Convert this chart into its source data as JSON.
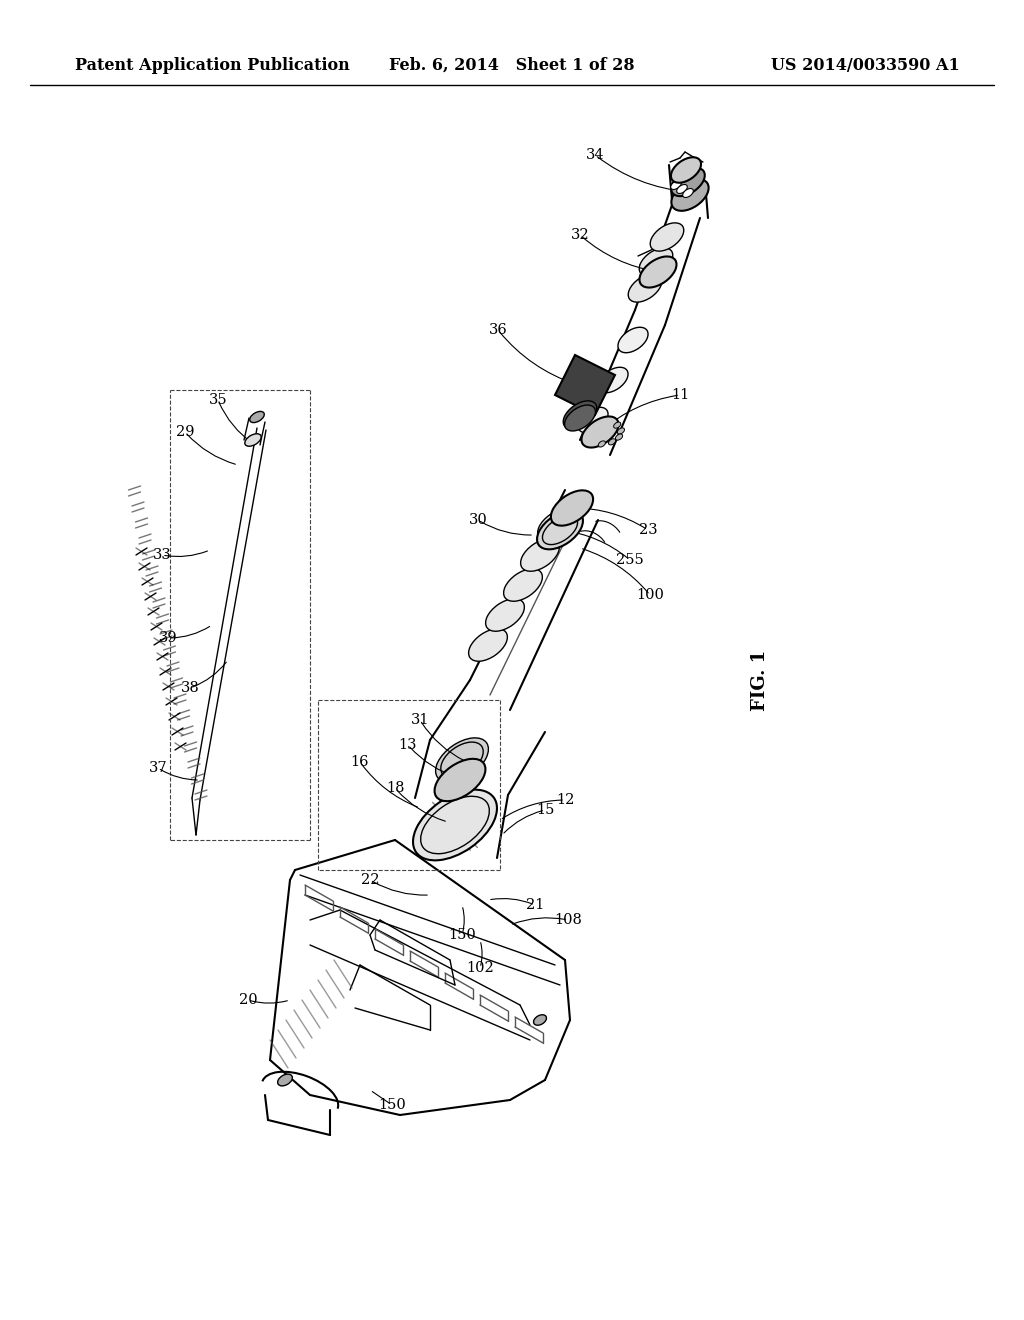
{
  "background_color": "#ffffff",
  "header_left": "Patent Application Publication",
  "header_center": "Feb. 6, 2014   Sheet 1 of 28",
  "header_right": "US 2014/0033590 A1",
  "figure_label": "FIG. 1",
  "header_fontsize": 11.5,
  "fig_label_fontsize": 13,
  "line_color": "#000000"
}
